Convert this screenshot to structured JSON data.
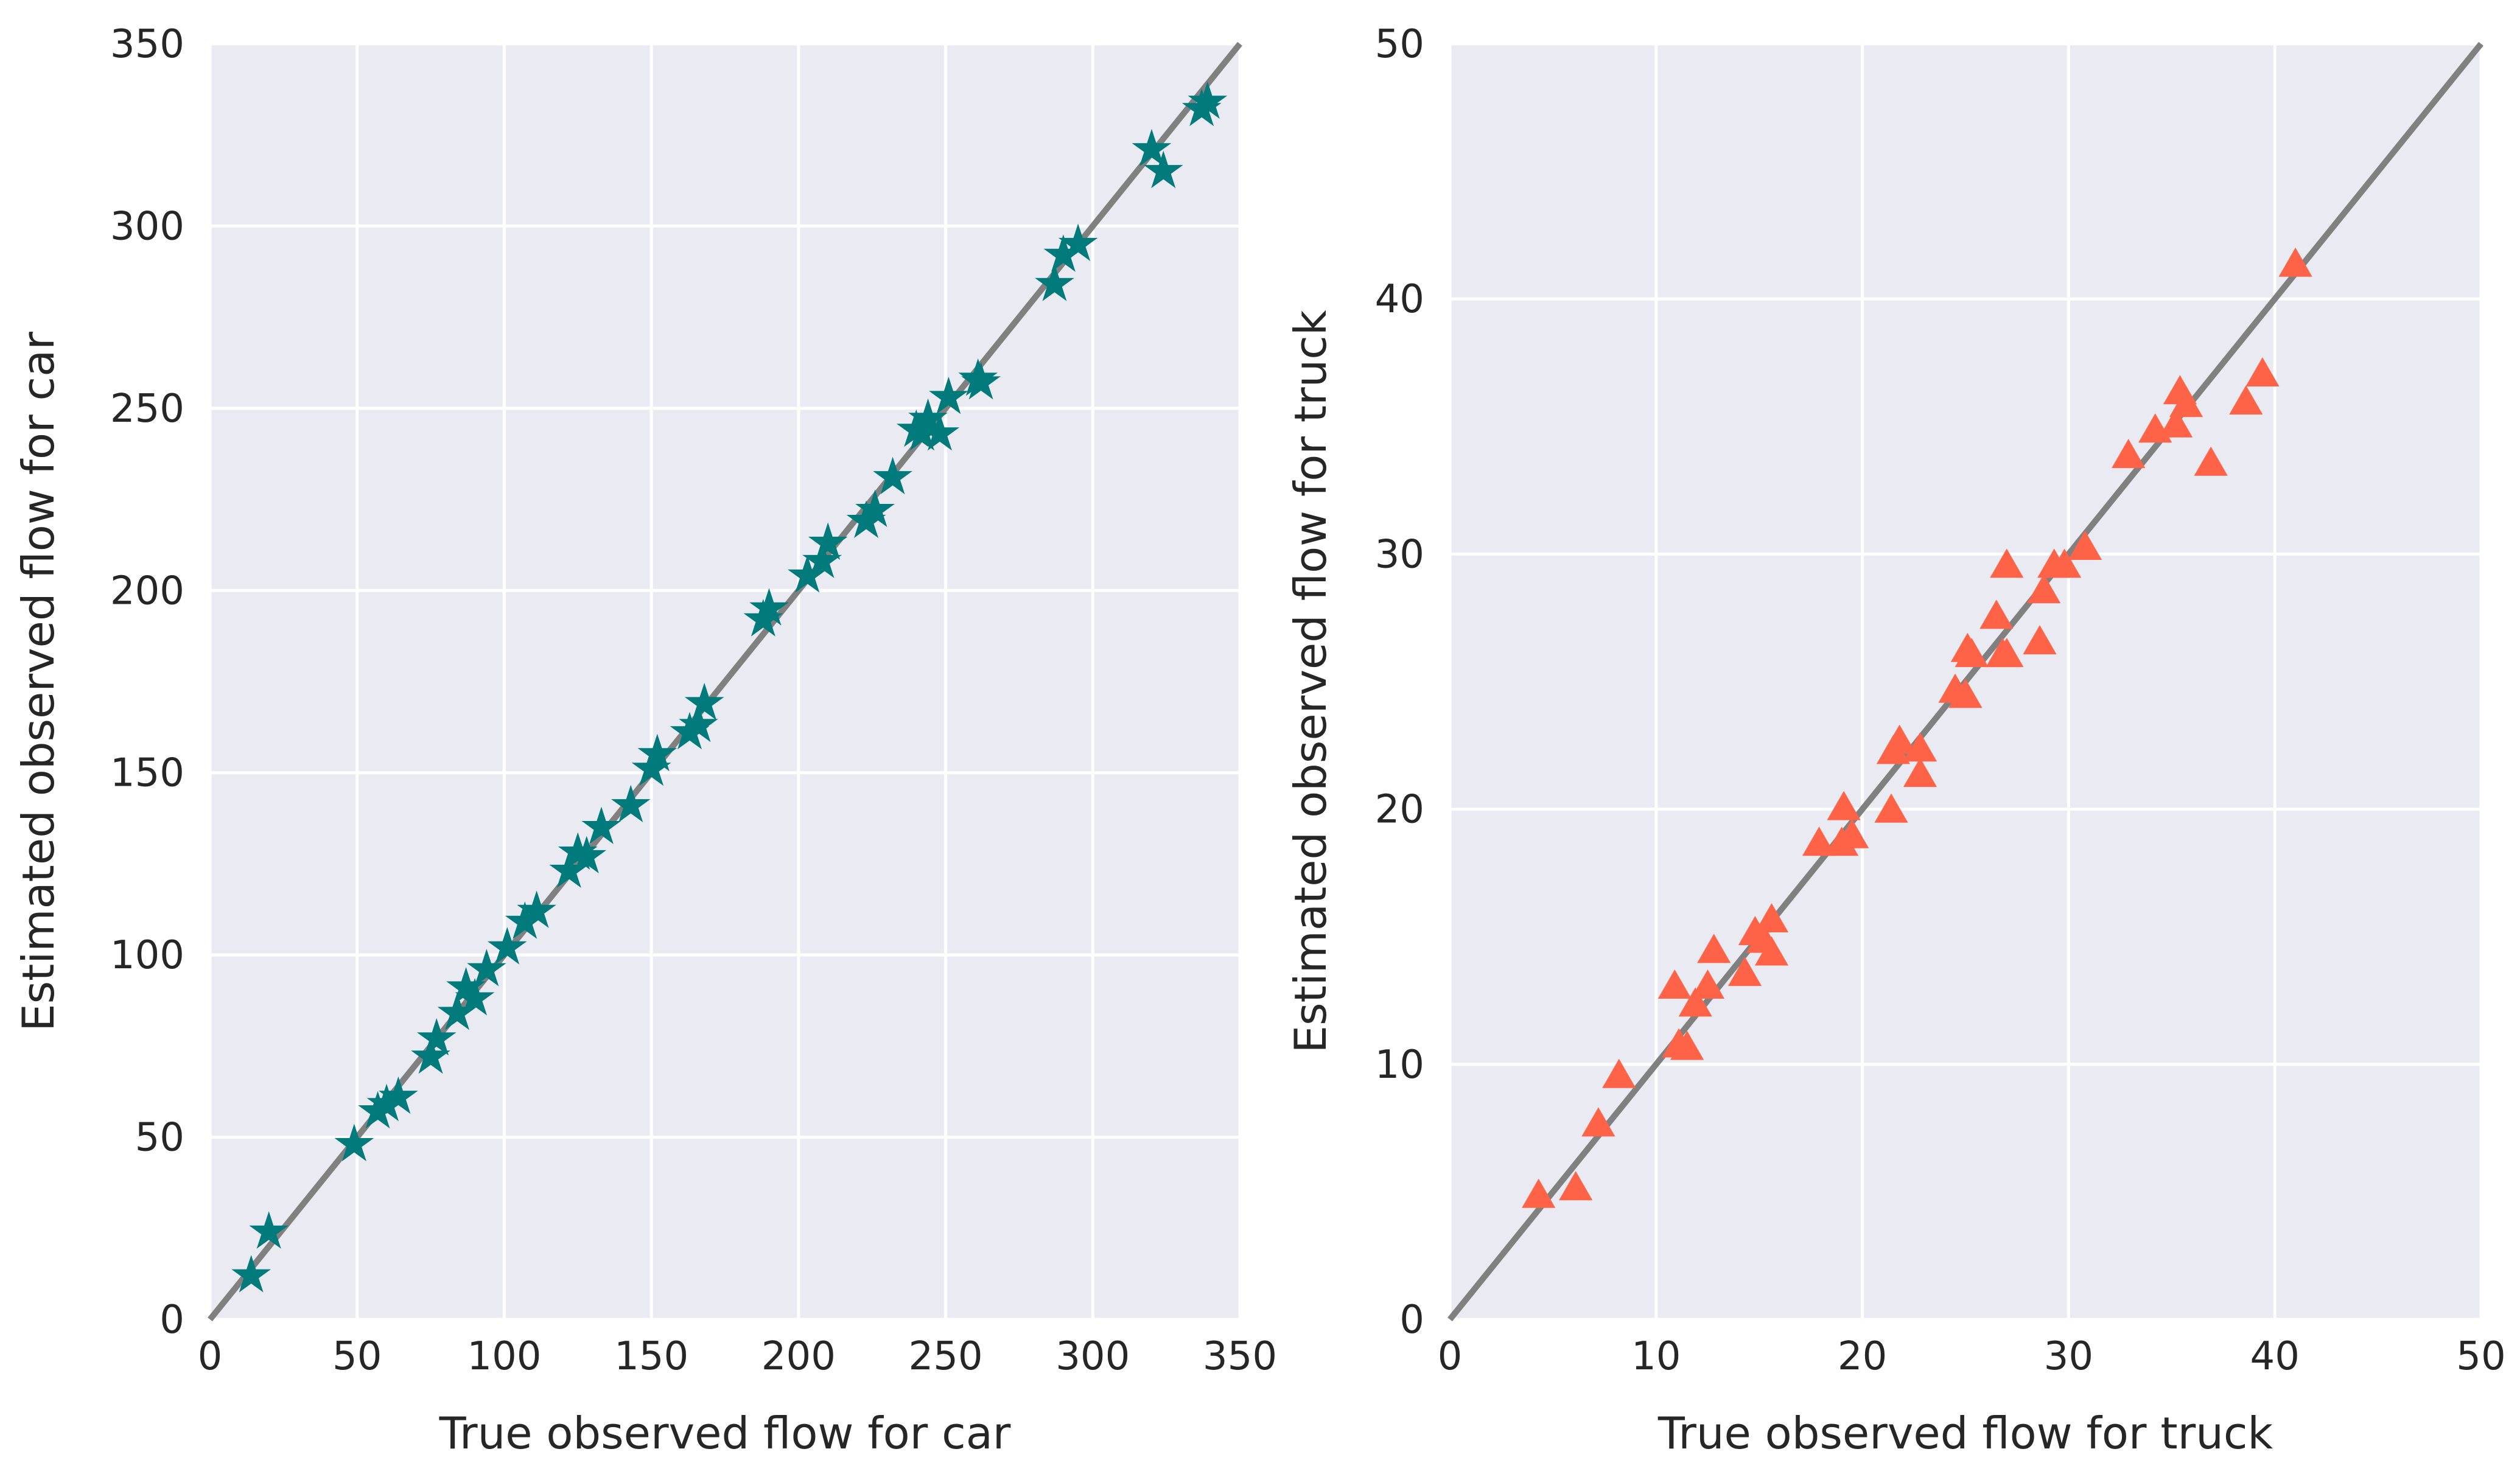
{
  "colors": {
    "plot_background": "#EAEAF2",
    "grid": "#FFFFFF",
    "diagonal_line": "#808080",
    "car_marker": "#007A7A",
    "truck_marker": "#FF6347",
    "text": "#262626"
  },
  "chart_data": [
    {
      "type": "scatter",
      "marker": "star",
      "xlabel": "True observed flow for car",
      "ylabel": "Estimated observed flow for car",
      "xlim": [
        0,
        350
      ],
      "ylim": [
        0,
        350
      ],
      "xticks": [
        0,
        50,
        100,
        150,
        200,
        250,
        300,
        350
      ],
      "yticks": [
        0,
        50,
        100,
        150,
        200,
        250,
        300,
        350
      ],
      "grid": true,
      "reference_line": "y = x",
      "points": [
        [
          14,
          12
        ],
        [
          20,
          24
        ],
        [
          49,
          48
        ],
        [
          57,
          57
        ],
        [
          60,
          59
        ],
        [
          64,
          61
        ],
        [
          75,
          72
        ],
        [
          77,
          77
        ],
        [
          84,
          84
        ],
        [
          87,
          91
        ],
        [
          90,
          88
        ],
        [
          94,
          96
        ],
        [
          101,
          102
        ],
        [
          107,
          109
        ],
        [
          111,
          112
        ],
        [
          122,
          123
        ],
        [
          125,
          128
        ],
        [
          128,
          127
        ],
        [
          133,
          135
        ],
        [
          143,
          141
        ],
        [
          150,
          151
        ],
        [
          152,
          155
        ],
        [
          163,
          161
        ],
        [
          166,
          163
        ],
        [
          168,
          169
        ],
        [
          188,
          192
        ],
        [
          190,
          195
        ],
        [
          203,
          204
        ],
        [
          208,
          208
        ],
        [
          210,
          213
        ],
        [
          223,
          219
        ],
        [
          226,
          222
        ],
        [
          232,
          231
        ],
        [
          240,
          244
        ],
        [
          242,
          243
        ],
        [
          244,
          247
        ],
        [
          248,
          243
        ],
        [
          251,
          253
        ],
        [
          261,
          258
        ],
        [
          262,
          257
        ],
        [
          287,
          284
        ],
        [
          290,
          292
        ],
        [
          295,
          295
        ],
        [
          320,
          321
        ],
        [
          324,
          315
        ],
        [
          337,
          332
        ],
        [
          339,
          334
        ]
      ]
    },
    {
      "type": "scatter",
      "marker": "triangle",
      "xlabel": "True observed flow for truck",
      "ylabel": "Estimated observed flow for truck",
      "xlim": [
        0,
        50
      ],
      "ylim": [
        0,
        50
      ],
      "xticks": [
        0,
        10,
        20,
        30,
        40,
        50
      ],
      "yticks": [
        0,
        10,
        20,
        30,
        40,
        50
      ],
      "grid": true,
      "reference_line": "y = x",
      "points": [
        [
          4.3,
          4.8
        ],
        [
          6.1,
          5.1
        ],
        [
          7.2,
          7.6
        ],
        [
          8.2,
          9.5
        ],
        [
          10.9,
          13.0
        ],
        [
          11.1,
          10.7
        ],
        [
          11.5,
          10.6
        ],
        [
          11.9,
          12.3
        ],
        [
          12.5,
          13.0
        ],
        [
          12.8,
          14.4
        ],
        [
          14.3,
          13.5
        ],
        [
          14.8,
          15.1
        ],
        [
          15.2,
          14.8
        ],
        [
          15.6,
          14.3
        ],
        [
          15.6,
          15.6
        ],
        [
          17.9,
          18.6
        ],
        [
          19.0,
          18.6
        ],
        [
          19.1,
          20.0
        ],
        [
          19.5,
          18.9
        ],
        [
          21.4,
          19.9
        ],
        [
          21.5,
          22.2
        ],
        [
          21.8,
          22.6
        ],
        [
          22.8,
          21.3
        ],
        [
          22.8,
          22.3
        ],
        [
          24.5,
          24.6
        ],
        [
          25.0,
          24.4
        ],
        [
          25.1,
          26.2
        ],
        [
          25.3,
          26.0
        ],
        [
          26.5,
          27.5
        ],
        [
          26.8,
          26.0
        ],
        [
          27.0,
          29.5
        ],
        [
          27.0,
          26.0
        ],
        [
          28.6,
          26.5
        ],
        [
          28.8,
          28.5
        ],
        [
          29.3,
          29.5
        ],
        [
          29.8,
          29.5
        ],
        [
          30.8,
          30.2
        ],
        [
          32.9,
          33.8
        ],
        [
          34.2,
          34.8
        ],
        [
          35.2,
          35.0
        ],
        [
          35.4,
          36.3
        ],
        [
          35.7,
          35.8
        ],
        [
          36.9,
          33.5
        ],
        [
          38.6,
          35.9
        ],
        [
          39.4,
          37.0
        ],
        [
          41.0,
          41.3
        ]
      ]
    }
  ]
}
